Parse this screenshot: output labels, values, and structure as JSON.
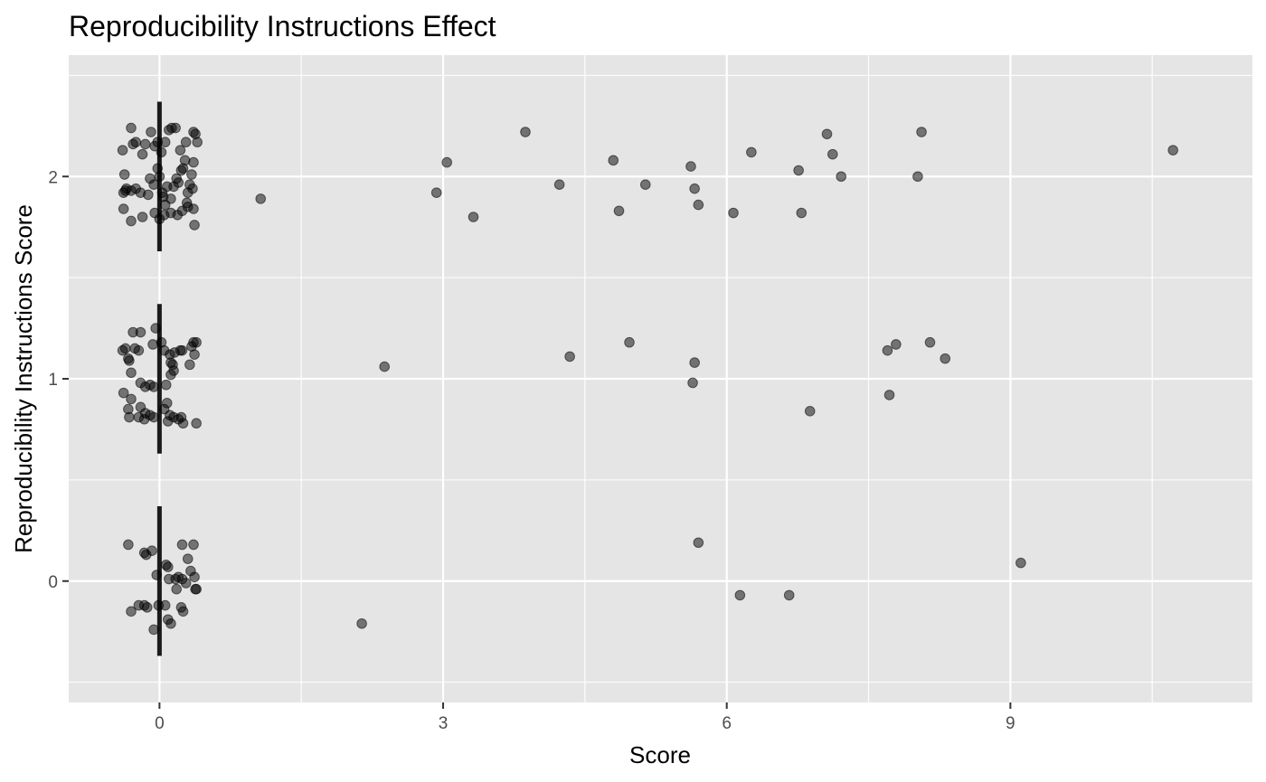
{
  "chart_data": {
    "type": "scatter",
    "title": "Reproducibility Instructions Effect",
    "xlabel": "Score",
    "ylabel": "Reproducibility Instructions Score",
    "xlim": [
      -0.96,
      11.56
    ],
    "ylim": [
      -0.6,
      2.6
    ],
    "x_ticks": [
      0,
      3,
      6,
      9
    ],
    "x_tick_labels": [
      "0",
      "3",
      "6",
      "9"
    ],
    "y_ticks": [
      0,
      1,
      2
    ],
    "y_tick_labels": [
      "0",
      "1",
      "2"
    ],
    "grid": true,
    "colors": {
      "panel": "#e5e5e5",
      "point": "#000000",
      "point_alpha": 0.5,
      "bar": "#1a1a1a"
    },
    "median_bars": [
      {
        "group": 0,
        "x": 0,
        "y_from": -0.37,
        "y_to": 0.37
      },
      {
        "group": 1,
        "x": 0,
        "y_from": 0.63,
        "y_to": 1.37
      },
      {
        "group": 2,
        "x": 0,
        "y_from": 1.63,
        "y_to": 2.37
      }
    ],
    "series": [
      {
        "group": 2,
        "points": [
          [
            -0.39,
            2.13
          ],
          [
            -0.3,
            2.24
          ],
          [
            -0.28,
            2.16
          ],
          [
            -0.25,
            2.17
          ],
          [
            -0.18,
            2.11
          ],
          [
            -0.15,
            2.16
          ],
          [
            -0.09,
            2.22
          ],
          [
            -0.05,
            2.15
          ],
          [
            -0.02,
            2.17
          ],
          [
            0.02,
            2.12
          ],
          [
            0.06,
            2.17
          ],
          [
            0.1,
            2.23
          ],
          [
            0.13,
            2.24
          ],
          [
            0.17,
            2.24
          ],
          [
            0.22,
            2.13
          ],
          [
            0.28,
            2.17
          ],
          [
            0.36,
            2.22
          ],
          [
            0.38,
            2.21
          ],
          [
            0.4,
            2.17
          ],
          [
            -0.37,
            2.01
          ],
          [
            -0.36,
            1.93
          ],
          [
            -0.35,
            1.94
          ],
          [
            -0.38,
            1.92
          ],
          [
            -0.3,
            1.93
          ],
          [
            -0.2,
            1.92
          ],
          [
            -0.12,
            1.91
          ],
          [
            -0.1,
            1.99
          ],
          [
            -0.06,
            1.96
          ],
          [
            -0.02,
            2.04
          ],
          [
            0.0,
            2.0
          ],
          [
            0.03,
            1.92
          ],
          [
            0.04,
            1.9
          ],
          [
            0.08,
            1.95
          ],
          [
            0.12,
            1.89
          ],
          [
            0.15,
            1.95
          ],
          [
            0.18,
            1.99
          ],
          [
            0.23,
            2.03
          ],
          [
            0.25,
            2.04
          ],
          [
            0.27,
            2.08
          ],
          [
            0.3,
            1.92
          ],
          [
            0.34,
            2.01
          ],
          [
            0.35,
            1.94
          ],
          [
            0.36,
            2.07
          ],
          [
            0.32,
            1.96
          ],
          [
            0.2,
            1.97
          ],
          [
            -0.25,
            1.94
          ],
          [
            -0.38,
            1.84
          ],
          [
            -0.3,
            1.78
          ],
          [
            -0.18,
            1.8
          ],
          [
            -0.05,
            1.82
          ],
          [
            0.0,
            1.79
          ],
          [
            0.05,
            1.81
          ],
          [
            0.12,
            1.82
          ],
          [
            0.19,
            1.81
          ],
          [
            0.24,
            1.83
          ],
          [
            0.3,
            1.85
          ],
          [
            0.36,
            1.84
          ],
          [
            0.37,
            1.76
          ],
          [
            0.29,
            1.87
          ],
          [
            0.06,
            1.86
          ],
          [
            1.07,
            1.89
          ],
          [
            2.93,
            1.92
          ],
          [
            3.04,
            2.07
          ],
          [
            3.32,
            1.8
          ],
          [
            3.87,
            2.22
          ],
          [
            4.23,
            1.96
          ],
          [
            4.8,
            2.08
          ],
          [
            4.86,
            1.83
          ],
          [
            5.14,
            1.96
          ],
          [
            5.62,
            2.05
          ],
          [
            5.66,
            1.94
          ],
          [
            5.7,
            1.86
          ],
          [
            6.07,
            1.82
          ],
          [
            6.26,
            2.12
          ],
          [
            6.76,
            2.03
          ],
          [
            6.79,
            1.82
          ],
          [
            7.06,
            2.21
          ],
          [
            7.12,
            2.11
          ],
          [
            7.21,
            2.0
          ],
          [
            8.02,
            2.0
          ],
          [
            8.06,
            2.22
          ],
          [
            10.72,
            2.13
          ]
        ]
      },
      {
        "group": 1,
        "points": [
          [
            -0.39,
            1.14
          ],
          [
            -0.36,
            1.15
          ],
          [
            -0.33,
            1.1
          ],
          [
            -0.32,
            1.09
          ],
          [
            -0.28,
            1.23
          ],
          [
            -0.26,
            1.15
          ],
          [
            -0.22,
            1.14
          ],
          [
            -0.2,
            1.23
          ],
          [
            -0.07,
            1.17
          ],
          [
            -0.04,
            1.25
          ],
          [
            0.02,
            1.18
          ],
          [
            0.05,
            1.14
          ],
          [
            0.11,
            1.12
          ],
          [
            0.12,
            1.08
          ],
          [
            0.14,
            1.07
          ],
          [
            0.15,
            1.04
          ],
          [
            0.16,
            1.13
          ],
          [
            0.22,
            1.14
          ],
          [
            0.24,
            1.14
          ],
          [
            0.32,
            1.07
          ],
          [
            0.34,
            1.16
          ],
          [
            0.36,
            1.18
          ],
          [
            0.37,
            1.12
          ],
          [
            0.39,
            1.18
          ],
          [
            0.12,
            1.02
          ],
          [
            -0.3,
            1.03
          ],
          [
            -0.38,
            0.93
          ],
          [
            -0.3,
            0.9
          ],
          [
            -0.2,
            0.98
          ],
          [
            -0.15,
            0.96
          ],
          [
            -0.1,
            0.97
          ],
          [
            -0.06,
            0.96
          ],
          [
            0.07,
            0.97
          ],
          [
            0.08,
            0.88
          ],
          [
            -0.33,
            0.85
          ],
          [
            -0.32,
            0.81
          ],
          [
            -0.2,
            0.86
          ],
          [
            -0.15,
            0.83
          ],
          [
            -0.16,
            0.8
          ],
          [
            -0.1,
            0.82
          ],
          [
            -0.06,
            0.81
          ],
          [
            0.09,
            0.79
          ],
          [
            0.11,
            0.82
          ],
          [
            0.15,
            0.81
          ],
          [
            0.2,
            0.8
          ],
          [
            0.23,
            0.81
          ],
          [
            0.25,
            0.78
          ],
          [
            0.39,
            0.78
          ],
          [
            0.05,
            0.85
          ],
          [
            -0.22,
            0.81
          ],
          [
            2.38,
            1.06
          ],
          [
            4.34,
            1.11
          ],
          [
            4.97,
            1.18
          ],
          [
            5.64,
            0.98
          ],
          [
            5.66,
            1.08
          ],
          [
            6.88,
            0.84
          ],
          [
            7.7,
            1.14
          ],
          [
            7.72,
            0.92
          ],
          [
            7.79,
            1.17
          ],
          [
            8.15,
            1.18
          ],
          [
            8.31,
            1.1
          ]
        ]
      },
      {
        "group": 0,
        "points": [
          [
            -0.33,
            0.18
          ],
          [
            -0.16,
            0.14
          ],
          [
            -0.14,
            0.13
          ],
          [
            -0.08,
            0.15
          ],
          [
            0.09,
            0.07
          ],
          [
            0.24,
            0.18
          ],
          [
            0.3,
            0.11
          ],
          [
            0.36,
            0.18
          ],
          [
            0.07,
            0.08
          ],
          [
            -0.03,
            0.03
          ],
          [
            0.17,
            0.01
          ],
          [
            0.2,
            0.02
          ],
          [
            0.24,
            0.01
          ],
          [
            0.37,
            0.02
          ],
          [
            0.33,
            0.05
          ],
          [
            0.38,
            -0.04
          ],
          [
            0.39,
            -0.04
          ],
          [
            0.18,
            -0.04
          ],
          [
            0.1,
            0.01
          ],
          [
            0.28,
            -0.01
          ],
          [
            -0.3,
            -0.15
          ],
          [
            -0.22,
            -0.12
          ],
          [
            -0.16,
            -0.12
          ],
          [
            -0.13,
            -0.13
          ],
          [
            -0.06,
            -0.24
          ],
          [
            -0.01,
            -0.12
          ],
          [
            0.06,
            -0.12
          ],
          [
            0.09,
            -0.19
          ],
          [
            0.12,
            -0.21
          ],
          [
            0.23,
            -0.13
          ],
          [
            0.25,
            -0.15
          ],
          [
            2.14,
            -0.21
          ],
          [
            5.7,
            0.19
          ],
          [
            6.14,
            -0.07
          ],
          [
            6.66,
            -0.07
          ],
          [
            9.11,
            0.09
          ]
        ]
      }
    ]
  }
}
